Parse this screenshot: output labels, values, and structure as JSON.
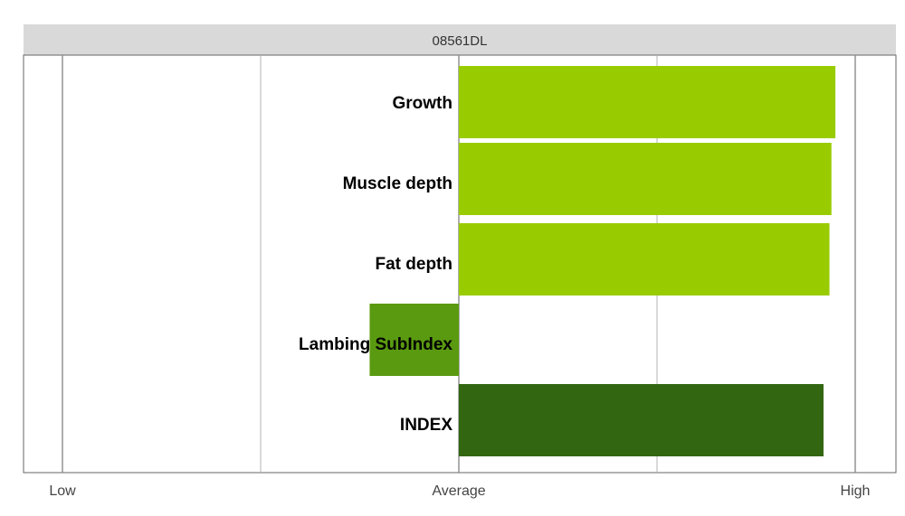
{
  "chart_data": {
    "type": "bar",
    "orientation": "horizontal",
    "title": "08561DL",
    "categories": [
      "Growth",
      "Muscle depth",
      "Fat depth",
      "Lambing SubIndex",
      "INDEX"
    ],
    "values": [
      0.95,
      0.94,
      0.935,
      -0.225,
      0.92
    ],
    "colors": [
      "#99cc00",
      "#99cc00",
      "#99cc00",
      "#5a9a10",
      "#336611"
    ],
    "xlim": [
      -1,
      1
    ],
    "xticks": [
      {
        "value": -1,
        "label": "Low"
      },
      {
        "value": 0,
        "label": "Average"
      },
      {
        "value": 1,
        "label": "High"
      }
    ],
    "minor_gridlines": [
      -0.5,
      0.5
    ],
    "xlabel": "",
    "ylabel": "",
    "grid": true,
    "legend": "none"
  }
}
